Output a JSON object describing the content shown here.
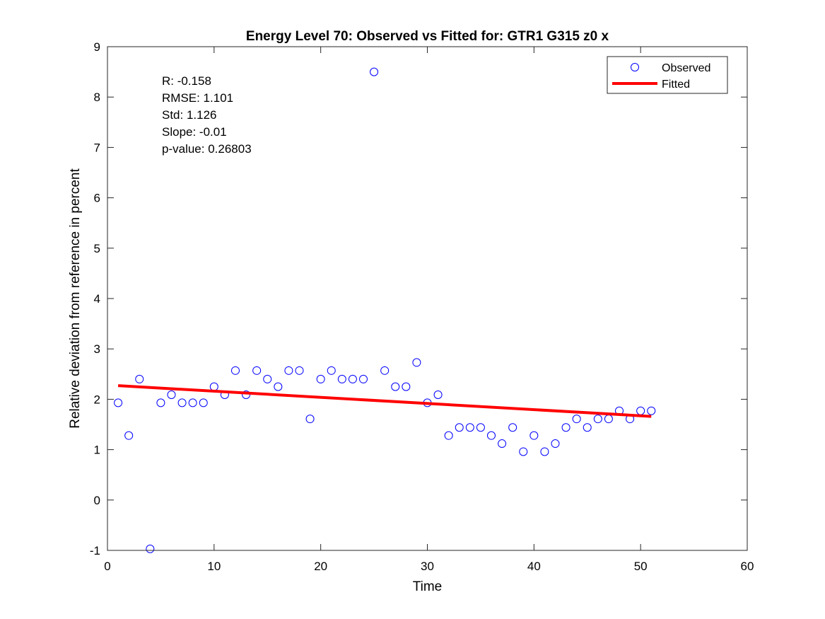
{
  "chart_data": {
    "type": "scatter",
    "title": "Energy Level 70: Observed vs Fitted for: GTR1 G315 z0 x",
    "xlabel": "Time",
    "ylabel": "Relative deviation from reference in percent",
    "xlim": [
      0,
      60
    ],
    "ylim": [
      -1,
      9
    ],
    "xticks": [
      0,
      10,
      20,
      30,
      40,
      50,
      60
    ],
    "yticks": [
      -1,
      0,
      1,
      2,
      3,
      4,
      5,
      6,
      7,
      8,
      9
    ],
    "grid": false,
    "legend_position": "top-right",
    "series": [
      {
        "name": "Observed",
        "type": "scatter",
        "marker": "open-circle",
        "color": "#0000ff",
        "x": [
          1,
          2,
          3,
          4,
          5,
          6,
          7,
          8,
          9,
          10,
          11,
          12,
          13,
          14,
          15,
          16,
          17,
          18,
          19,
          20,
          21,
          22,
          23,
          24,
          25,
          26,
          27,
          28,
          29,
          30,
          31,
          32,
          33,
          34,
          35,
          36,
          37,
          38,
          39,
          40,
          41,
          42,
          43,
          44,
          45,
          46,
          47,
          48,
          49,
          50,
          51
        ],
        "y": [
          1.93,
          1.28,
          2.4,
          -0.97,
          1.93,
          2.09,
          1.93,
          1.93,
          1.93,
          2.25,
          2.09,
          2.57,
          2.09,
          2.57,
          2.4,
          2.25,
          2.57,
          2.57,
          1.61,
          2.4,
          2.57,
          2.4,
          2.4,
          2.4,
          8.5,
          2.57,
          2.25,
          2.25,
          2.73,
          1.93,
          2.09,
          1.28,
          1.44,
          1.44,
          1.44,
          1.28,
          1.12,
          1.44,
          0.96,
          1.28,
          0.96,
          1.12,
          1.44,
          1.61,
          1.44,
          1.61,
          1.61,
          1.77,
          1.61,
          1.77,
          1.77
        ]
      },
      {
        "name": "Fitted",
        "type": "line",
        "color": "#ff0000",
        "x": [
          1,
          51
        ],
        "y": [
          2.27,
          1.66
        ]
      }
    ],
    "annotations": [
      "R: -0.158",
      "RMSE: 1.101",
      "Std: 1.126",
      "Slope: -0.01",
      "p-value: 0.26803"
    ]
  }
}
